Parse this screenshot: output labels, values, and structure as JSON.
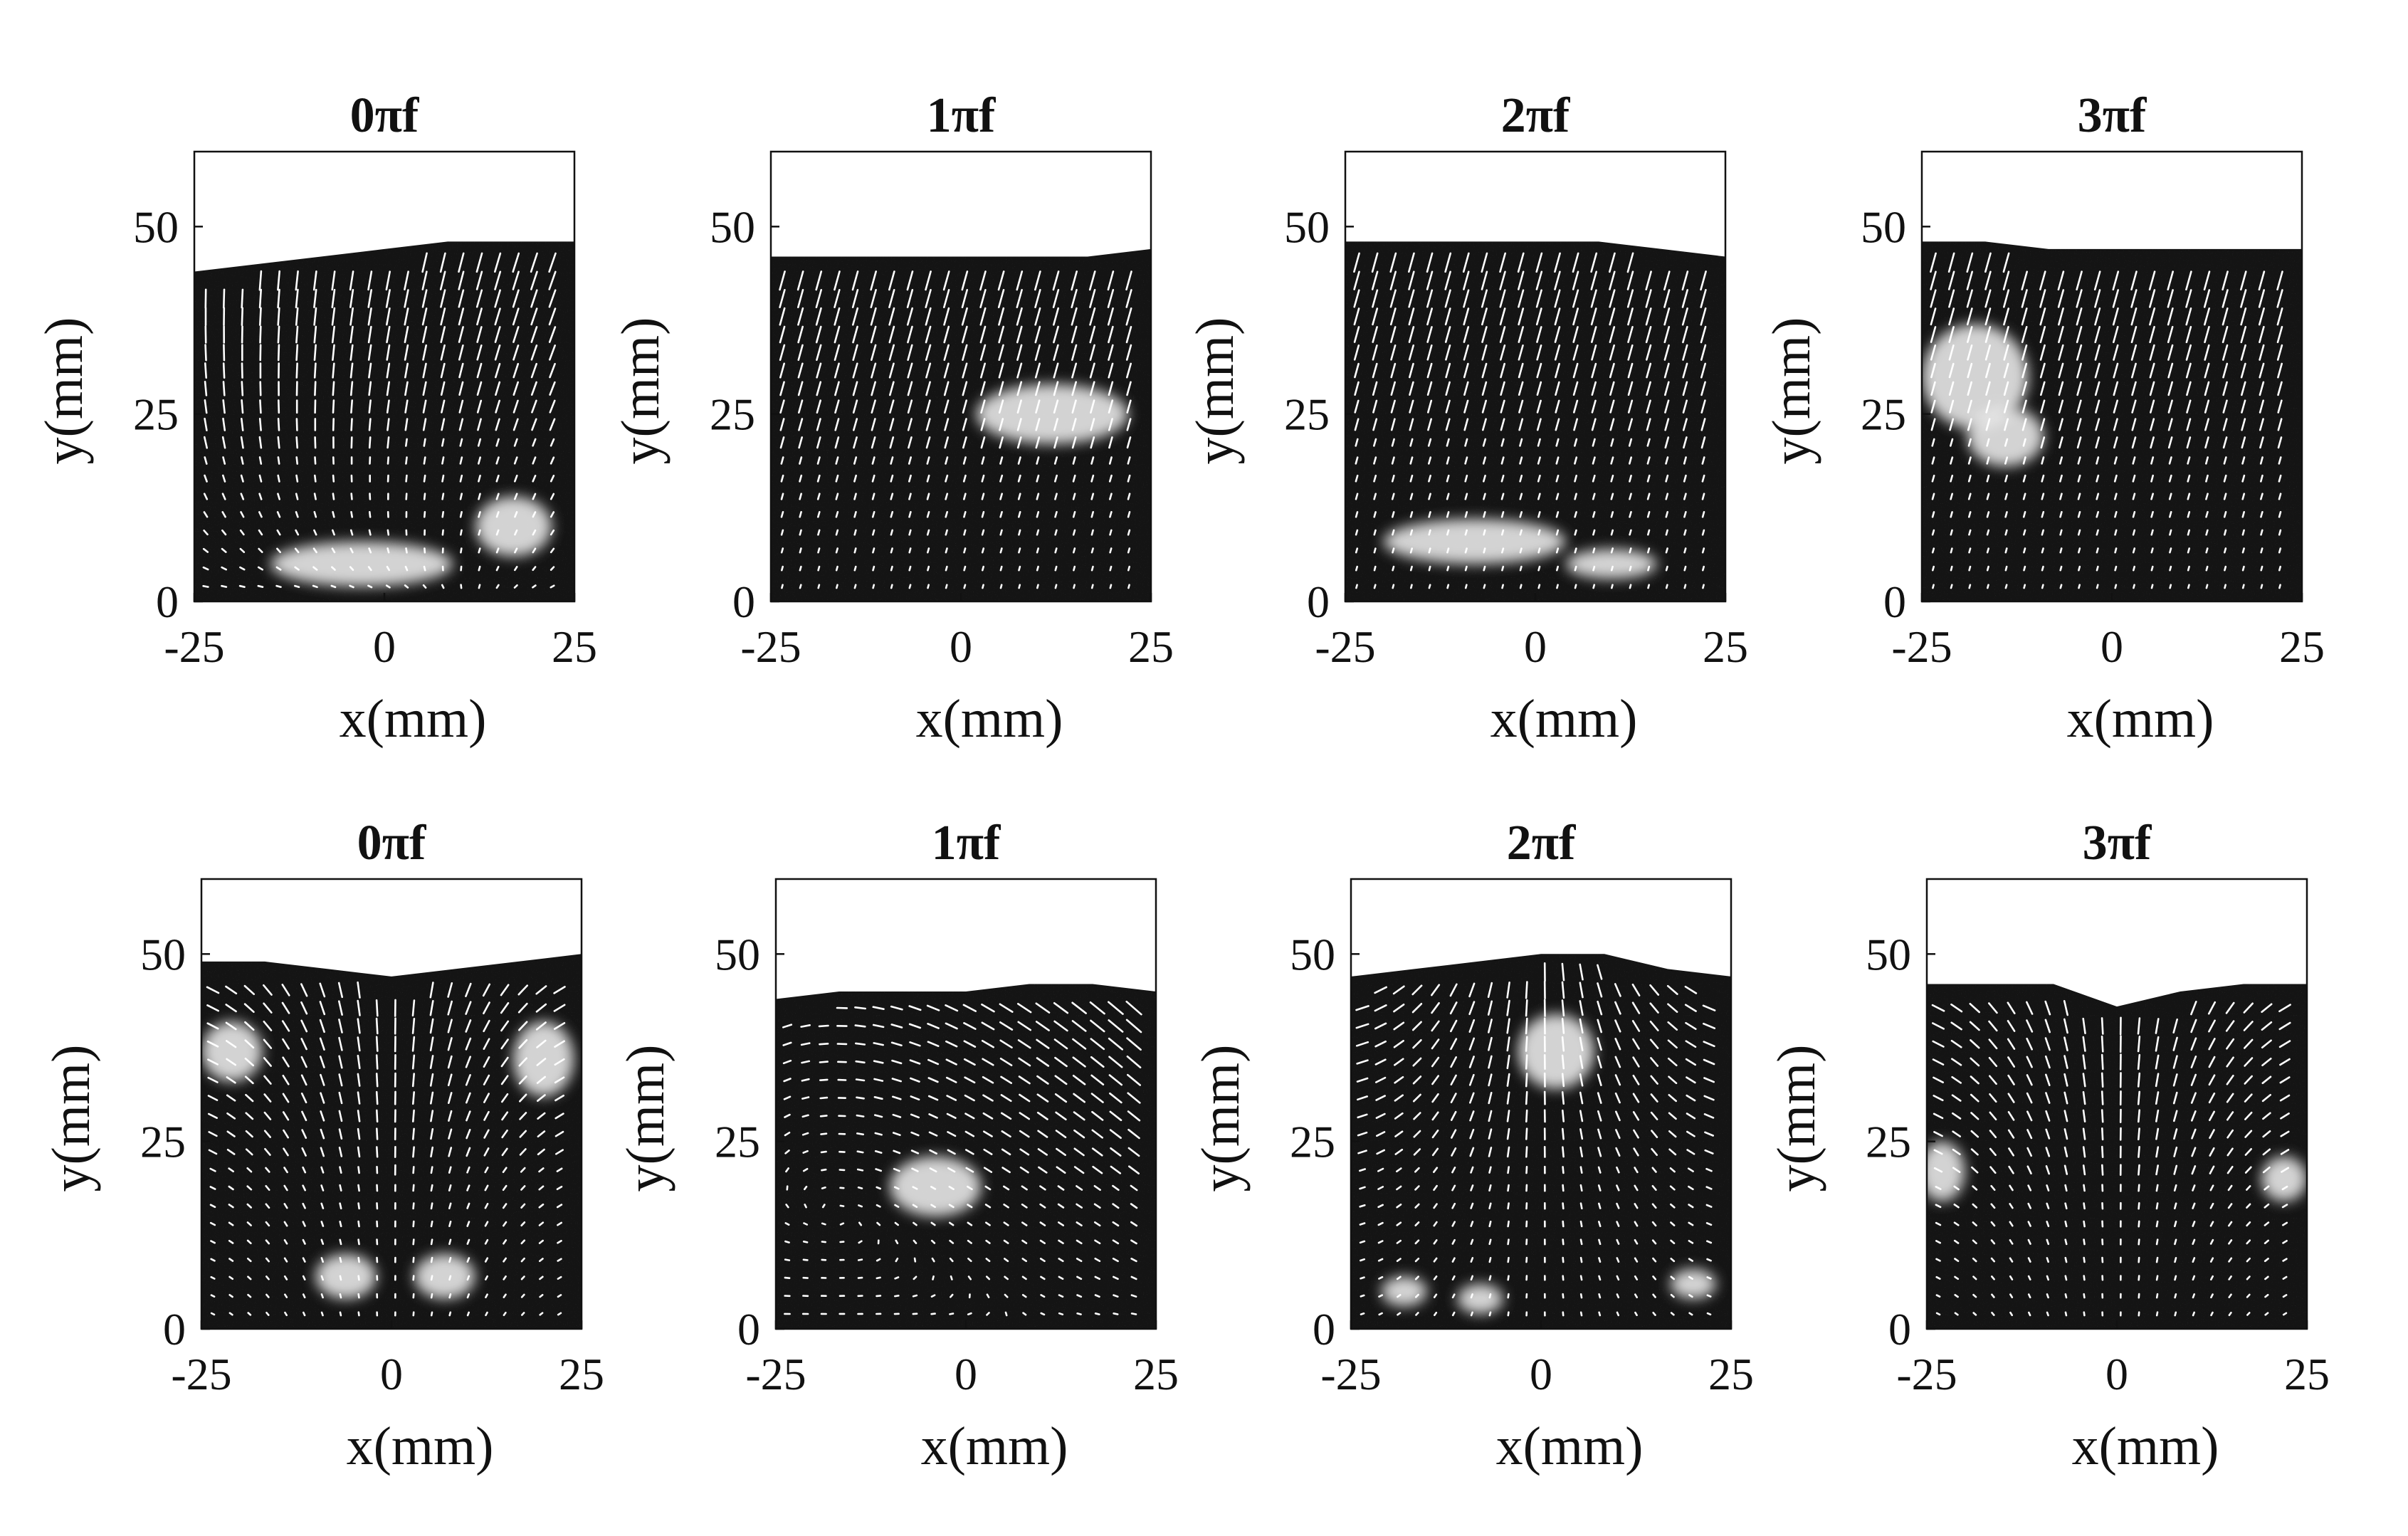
{
  "figure": {
    "rows": [
      {
        "panels": [
          {
            "title": "0πf",
            "free_surface_y": [
              44,
              45,
              46,
              47,
              48,
              48,
              48
            ],
            "bright_spots": [
              [
                -3,
                5,
                12,
                3
              ],
              [
                17,
                10,
                5,
                4
              ]
            ],
            "flow_pattern": "swirl"
          },
          {
            "title": "1πf",
            "free_surface_y": [
              46,
              46,
              46,
              46,
              46,
              46,
              47
            ],
            "bright_spots": [
              [
                12,
                25,
                10,
                4
              ]
            ],
            "flow_pattern": "uniform"
          },
          {
            "title": "2πf",
            "free_surface_y": [
              48,
              48,
              48,
              48,
              48,
              47,
              46
            ],
            "bright_spots": [
              [
                -8,
                8,
                12,
                3
              ],
              [
                10,
                5,
                6,
                2
              ]
            ],
            "flow_pattern": "uniform"
          },
          {
            "title": "3πf",
            "free_surface_y": [
              48,
              48,
              47,
              47,
              47,
              47,
              47
            ],
            "bright_spots": [
              [
                -18,
                30,
                7,
                7
              ],
              [
                -14,
                22,
                5,
                4
              ]
            ],
            "flow_pattern": "uniform"
          }
        ]
      },
      {
        "panels": [
          {
            "title": "0πf",
            "free_surface_y": [
              49,
              49,
              48,
              47,
              48,
              49,
              50
            ],
            "bright_spots": [
              [
                -21,
                37,
                4,
                4
              ],
              [
                20,
                36,
                4,
                5
              ],
              [
                -6,
                7,
                4,
                3
              ],
              [
                7,
                7,
                4,
                3
              ]
            ],
            "flow_pattern": "converge"
          },
          {
            "title": "1πf",
            "free_surface_y": [
              44,
              45,
              45,
              45,
              46,
              46,
              45
            ],
            "bright_spots": [
              [
                -4,
                19,
                6,
                4
              ]
            ],
            "flow_pattern": "curl"
          },
          {
            "title": "2πf",
            "free_surface_y": [
              47,
              48,
              49,
              50,
              50,
              48,
              47
            ],
            "bright_spots": [
              [
                2,
                37,
                5,
                5
              ],
              [
                -18,
                5,
                3,
                2
              ],
              [
                -8,
                4,
                3,
                2
              ],
              [
                20,
                6,
                3,
                2
              ]
            ],
            "flow_pattern": "diverge"
          },
          {
            "title": "3πf",
            "free_surface_y": [
              46,
              46,
              46,
              43,
              45,
              46,
              46
            ],
            "bright_spots": [
              [
                -23,
                21,
                3,
                4
              ],
              [
                22,
                20,
                3,
                3
              ]
            ],
            "flow_pattern": "converge"
          }
        ]
      }
    ],
    "axes": {
      "xlabel": "x(mm)",
      "ylabel": "y(mm)",
      "xticks": [
        "-25",
        "0",
        "25"
      ],
      "yticks": [
        "0",
        "25",
        "50"
      ],
      "xlim": [
        -25,
        25
      ],
      "ylim": [
        0,
        60
      ]
    },
    "colors": {
      "field": "#141414",
      "arrow": "#ffffff",
      "frame": "#111111",
      "background": "#ffffff"
    }
  }
}
